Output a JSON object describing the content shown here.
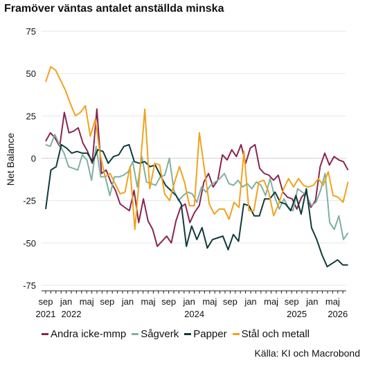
{
  "chart_data": {
    "type": "line",
    "title": "Framöver väntas antalet anställda minska",
    "ylabel": "Net Balance",
    "ylim": [
      -75,
      75
    ],
    "yticks": [
      75,
      50,
      25,
      0,
      -25,
      -50,
      -75
    ],
    "x_start": "2021-09",
    "x_end": "2026-05",
    "month_ticks": [
      "sep",
      "jan",
      "maj",
      "sep",
      "jan",
      "maj",
      "sep",
      "jan",
      "maj",
      "sep",
      "jan",
      "maj",
      "sep",
      "jan",
      "maj"
    ],
    "year_labels": [
      "2021",
      "2022",
      "2024",
      "2025",
      "2026"
    ],
    "source": "Källa: KI och Macrobond",
    "series": [
      {
        "name": "Andra icke-mmp",
        "color": "#8a2453",
        "values": [
          10,
          15,
          12,
          7,
          27,
          15,
          16,
          18,
          9,
          4,
          -3,
          29,
          -9,
          -7,
          -14,
          -19,
          -27,
          -29,
          -31,
          -19,
          -38,
          -24,
          -37,
          -42,
          -52,
          -49,
          -46,
          -50,
          -37,
          -29,
          -27,
          -38,
          -32,
          -28,
          -14,
          -9,
          -17,
          -13,
          2,
          -1,
          5,
          1,
          8,
          -3,
          6,
          8,
          -6,
          -9,
          -10,
          -13,
          -10,
          -20,
          -23,
          -24,
          -30,
          -23,
          -20,
          -29,
          -25,
          -5,
          3,
          -4,
          1,
          -1,
          -2,
          -7
        ]
      },
      {
        "name": "Sågverk",
        "color": "#7fb0a0",
        "values": [
          8,
          7,
          14,
          8,
          3,
          -5,
          -6,
          -7,
          2,
          -1,
          -13,
          7,
          -11,
          -11,
          -22,
          -11,
          -11,
          -10,
          -8,
          -2,
          -17,
          1,
          -14,
          -15,
          -16,
          -11,
          -10,
          0,
          -19,
          -25,
          -22,
          -20,
          -21,
          -26,
          -17,
          -20,
          -16,
          -14,
          -12,
          -9,
          -15,
          -16,
          -13,
          -17,
          -15,
          -18,
          -14,
          -16,
          -22,
          -12,
          -23,
          -30,
          -24,
          -29,
          -31,
          -18,
          -20,
          -22,
          -28,
          -26,
          -19,
          -9,
          -38,
          -42,
          -34,
          -48,
          -44
        ]
      },
      {
        "name": "Papper",
        "color": "#0f3a3a",
        "values": [
          -30,
          -7,
          -5,
          8,
          6,
          3,
          4,
          3,
          3,
          -2,
          5,
          4,
          -3,
          1,
          2,
          7,
          8,
          -2,
          -3,
          -2,
          -5,
          -4,
          -10,
          -16,
          -19,
          -22,
          -27,
          -52,
          -40,
          -48,
          -41,
          -53,
          -48,
          -47,
          -46,
          -54,
          -45,
          -49,
          -27,
          -28,
          -34,
          -34,
          -24,
          -24,
          -20,
          -26,
          -27,
          -31,
          -22,
          -33,
          -18,
          -41,
          -48,
          -57,
          -64,
          -62,
          -60,
          -63,
          -63
        ]
      },
      {
        "name": "Stål och metall",
        "color": "#f0a21e",
        "values": [
          45,
          54,
          52,
          46,
          40,
          32,
          25,
          27,
          31,
          13,
          23,
          2,
          -11,
          -9,
          -15,
          -21,
          -20,
          -5,
          -42,
          -8,
          29,
          -18,
          -3,
          -4,
          -21,
          -25,
          -14,
          -5,
          -14,
          -28,
          -28,
          15,
          -6,
          -27,
          -33,
          -30,
          -30,
          -36,
          -26,
          -29,
          4,
          -31,
          -31,
          -14,
          -13,
          -20,
          -34,
          -27,
          -18,
          -12,
          -17,
          -12,
          -16,
          -17,
          -16,
          -12,
          -16,
          -8,
          -22,
          -23,
          -26,
          -14
        ]
      }
    ]
  }
}
